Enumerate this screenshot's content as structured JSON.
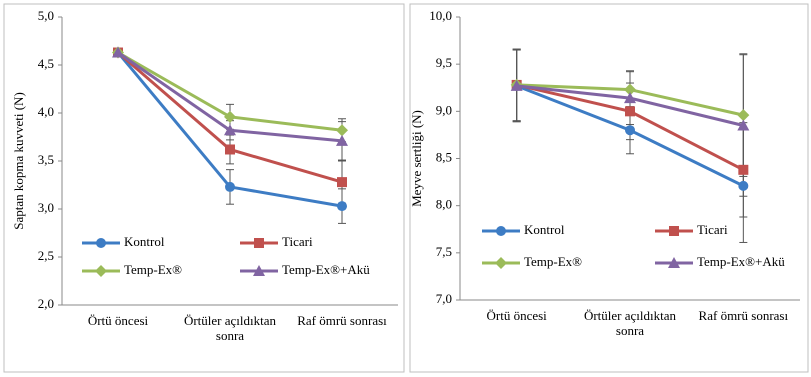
{
  "chart_data": [
    {
      "type": "line",
      "y_label": "Saptan kopma kuvveti (N)",
      "categories": [
        "Örtü öncesi",
        "Örtüler açıldıktan sonra",
        "Raf ömrü sonrası"
      ],
      "ylim": [
        2,
        5
      ],
      "yticks": [
        {
          "value": 2,
          "label": "2,0"
        },
        {
          "value": 2.5,
          "label": "2,5"
        },
        {
          "value": 3,
          "label": "3,0"
        },
        {
          "value": 3.5,
          "label": "3,5"
        },
        {
          "value": 4,
          "label": "4,0"
        },
        {
          "value": 4.5,
          "label": "4,5"
        },
        {
          "value": 5,
          "label": "5,0"
        }
      ],
      "series": [
        {
          "name": "Kontrol",
          "color": "#3d7cc4",
          "marker": "circle",
          "values": [
            4.63,
            3.23,
            3.03
          ],
          "errors": [
            0.02,
            0.18,
            0.18
          ]
        },
        {
          "name": "Ticari",
          "color": "#c0504d",
          "marker": "square",
          "values": [
            4.63,
            3.62,
            3.28
          ],
          "errors": [
            0.02,
            0.15,
            0.22
          ]
        },
        {
          "name": "Temp-Ex®",
          "color": "#9bbb59",
          "marker": "diamond",
          "values": [
            4.63,
            3.96,
            3.82
          ],
          "errors": [
            0.02,
            0.13,
            0.12
          ]
        },
        {
          "name": "Temp-Ex®+Akü",
          "color": "#8064a2",
          "marker": "triangle",
          "values": [
            4.63,
            3.82,
            3.71
          ],
          "errors": [
            0.02,
            0.1,
            0.2
          ]
        }
      ]
    },
    {
      "type": "line",
      "y_label": "Meyve sertliği (N)",
      "categories": [
        "Örtü öncesi",
        "Örtüler açıldıktan sonra",
        "Raf ömrü sonrası"
      ],
      "ylim": [
        7,
        10
      ],
      "yticks": [
        {
          "value": 7,
          "label": "7,0"
        },
        {
          "value": 7.5,
          "label": "7,5"
        },
        {
          "value": 8,
          "label": "8,0"
        },
        {
          "value": 8.5,
          "label": "8,5"
        },
        {
          "value": 9,
          "label": "9,0"
        },
        {
          "value": 9.5,
          "label": "9,5"
        },
        {
          "value": 10,
          "label": "10,0"
        }
      ],
      "series": [
        {
          "name": "Kontrol",
          "color": "#3d7cc4",
          "marker": "circle",
          "values": [
            9.27,
            8.8,
            8.21
          ],
          "errors": [
            0.38,
            0.25,
            0.6
          ]
        },
        {
          "name": "Ticari",
          "color": "#c0504d",
          "marker": "square",
          "values": [
            9.28,
            9.0,
            8.38
          ],
          "errors": [
            0.38,
            0.3,
            0.5
          ]
        },
        {
          "name": "Temp-Ex®",
          "color": "#9bbb59",
          "marker": "diamond",
          "values": [
            9.28,
            9.23,
            8.96
          ],
          "errors": [
            0.38,
            0.2,
            0.65
          ]
        },
        {
          "name": "Temp-Ex®+Akü",
          "color": "#8064a2",
          "marker": "triangle",
          "values": [
            9.27,
            9.14,
            8.85
          ],
          "errors": [
            0.38,
            0.28,
            0.75
          ]
        }
      ]
    }
  ]
}
